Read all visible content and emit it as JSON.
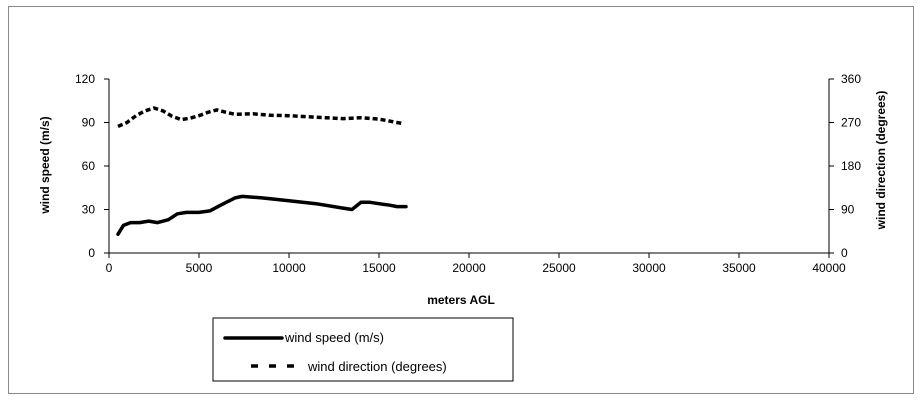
{
  "chart_data": {
    "type": "line",
    "xlabel": "meters AGL",
    "ylabel": "wind speed (m/s)",
    "y2label": "wind direction (degrees)",
    "xlim": [
      0,
      40000
    ],
    "ylim": [
      0,
      120
    ],
    "y2lim": [
      0,
      360
    ],
    "x_ticks": [
      "0",
      "5000",
      "10000",
      "15000",
      "20000",
      "25000",
      "30000",
      "35000",
      "40000"
    ],
    "y_ticks": [
      "0",
      "30",
      "60",
      "90",
      "120"
    ],
    "y2_ticks": [
      "0",
      "90",
      "180",
      "270",
      "360"
    ],
    "grid": false,
    "legend_position": "bottom-left",
    "series": [
      {
        "name": "wind speed (m/s)",
        "axis": "left",
        "style": "solid",
        "color": "#000000",
        "x": [
          500,
          800,
          1200,
          1700,
          2200,
          2700,
          3300,
          3800,
          4300,
          5000,
          5600,
          6200,
          7000,
          7400,
          8500,
          10000,
          11500,
          13000,
          13500,
          14000,
          14500,
          15000,
          15600,
          16000,
          16500
        ],
        "y": [
          13,
          19,
          21,
          21,
          22,
          21,
          23,
          27,
          28,
          28,
          29,
          33,
          38,
          39,
          38,
          36,
          34,
          31,
          30,
          35,
          35,
          34,
          33,
          32,
          32
        ]
      },
      {
        "name": "wind direction (degrees)",
        "axis": "right",
        "style": "dashed",
        "color": "#000000",
        "x": [
          500,
          1000,
          1500,
          2000,
          2500,
          3000,
          3500,
          4000,
          4500,
          5000,
          5500,
          6000,
          6500,
          7000,
          8000,
          9000,
          10000,
          11000,
          12000,
          13000,
          14000,
          15000,
          16000,
          16300
        ],
        "y": [
          262,
          270,
          284,
          294,
          300,
          294,
          283,
          276,
          279,
          284,
          291,
          296,
          291,
          287,
          288,
          285,
          284,
          282,
          280,
          278,
          280,
          277,
          270,
          268
        ]
      }
    ]
  }
}
